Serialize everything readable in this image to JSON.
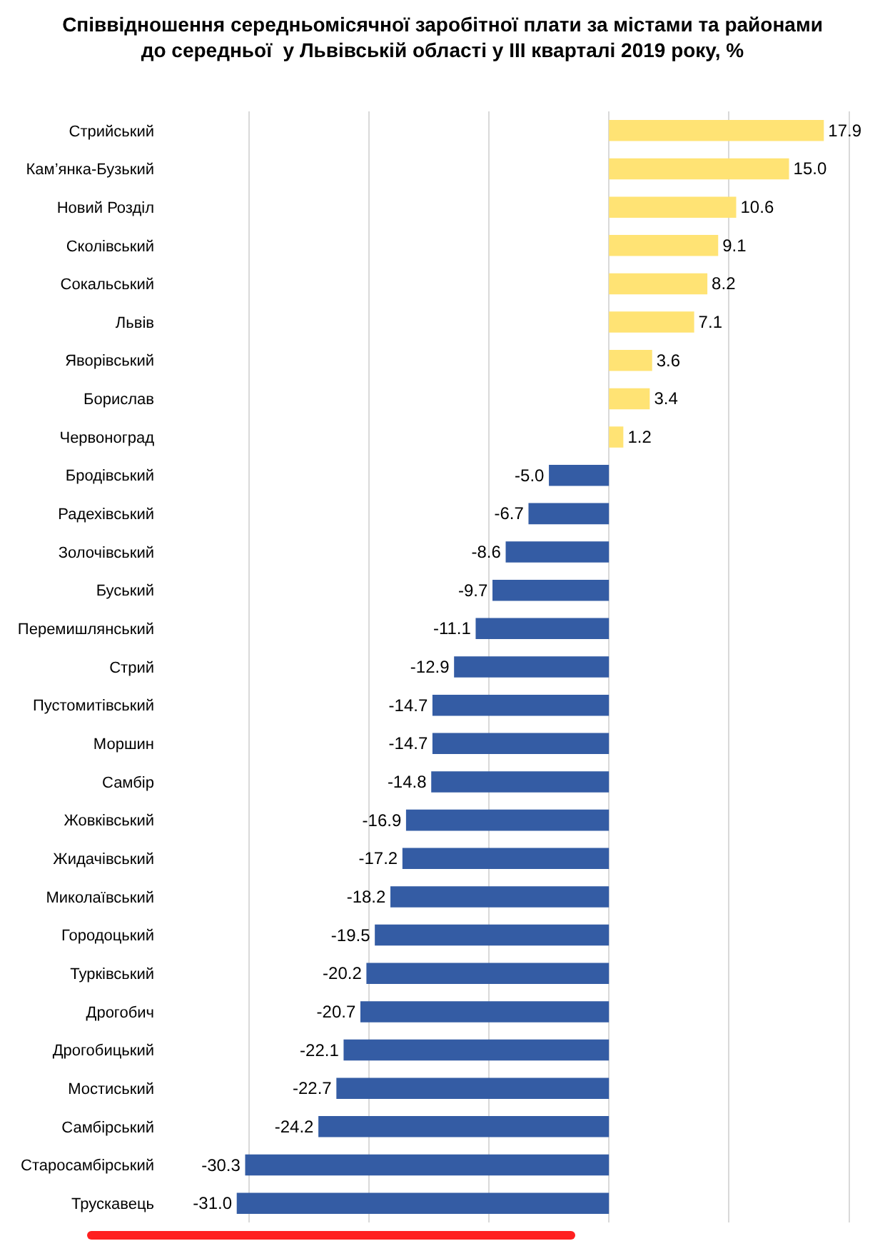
{
  "chart_data": {
    "type": "bar",
    "orientation": "horizontal",
    "title": "Співвідношення середньомісячної заробітної плати за містами та районами\nдо середньої  у Львівській області у III кварталі 2019 року, %",
    "categories": [
      "Стрийський",
      "Кам’янка-Бузький",
      "Новий Розділ",
      "Сколівський",
      "Сокальський",
      "Львів",
      "Яворівський",
      "Борислав",
      "Червоноград",
      "Бродівський",
      "Радехівський",
      "Золочівський",
      "Буський",
      "Перемишлянський",
      "Стрий",
      "Пустомитівський",
      "Моршин",
      "Самбір",
      "Жовківський",
      "Жидачівський",
      "Миколаївський",
      "Городоцький",
      "Турківський",
      "Дрогобич",
      "Дрогобицький",
      "Мостиський",
      "Самбірський",
      "Старосамбірський",
      "Трускавець"
    ],
    "values": [
      17.9,
      15.0,
      10.6,
      9.1,
      8.2,
      7.1,
      3.6,
      3.4,
      1.2,
      -5.0,
      -6.7,
      -8.6,
      -9.7,
      -11.1,
      -12.9,
      -14.7,
      -14.7,
      -14.8,
      -16.9,
      -17.2,
      -18.2,
      -19.5,
      -20.2,
      -20.7,
      -22.1,
      -22.7,
      -24.2,
      -30.3,
      -31.0
    ],
    "value_labels": [
      "17.9",
      "15.0",
      "10.6",
      "9.1",
      "8.2",
      "7.1",
      "3.6",
      "3.4",
      "1.2",
      "-5.0",
      "-6.7",
      "-8.6",
      "-9.7",
      "-11.1",
      "-12.9",
      "-14.7",
      "-14.7",
      "-14.8",
      "-16.9",
      "-17.2",
      "-18.2",
      "-19.5",
      "-20.2",
      "-20.7",
      "-22.1",
      "-22.7",
      "-24.2",
      "-30.3",
      "-31.0"
    ],
    "colors": [
      "#ffe374",
      "#ffe374",
      "#ffe374",
      "#ffe374",
      "#ffe374",
      "#ffe374",
      "#ffe374",
      "#ffe374",
      "#ffe374",
      "#345ca4",
      "#345ca4",
      "#345ca4",
      "#345ca4",
      "#345ca4",
      "#345ca4",
      "#345ca4",
      "#345ca4",
      "#345ca4",
      "#345ca4",
      "#345ca4",
      "#345ca4",
      "#345ca4",
      "#345ca4",
      "#345ca4",
      "#345ca4",
      "#345ca4",
      "#345ca4",
      "#345ca4",
      "#345ca4"
    ],
    "tick_labels": "y",
    "grid": "x",
    "legend": false
  }
}
